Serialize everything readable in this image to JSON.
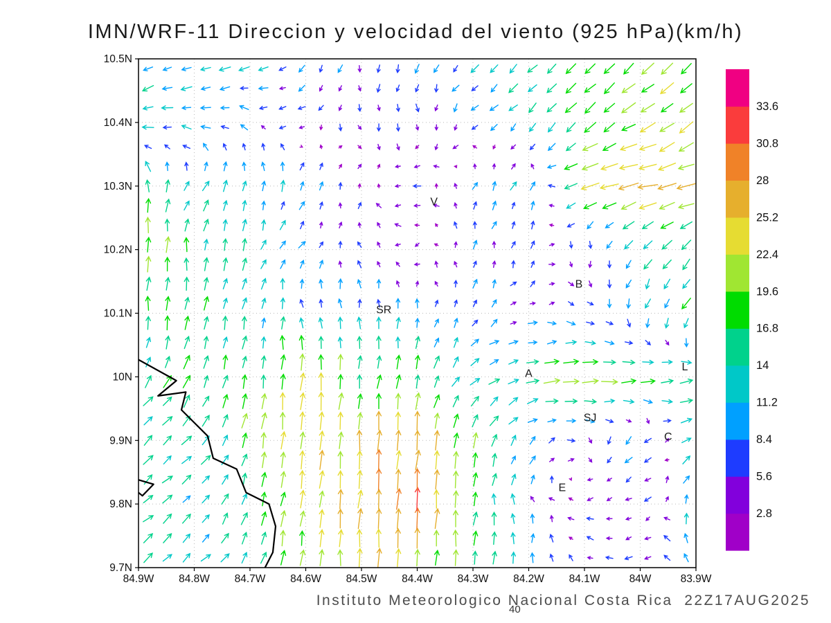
{
  "title": "IMN/WRF-11 Direccion y velocidad del viento (925 hPa)(km/h)",
  "caption": "Instituto Meteorologico Nacional Costa Rica  22Z17AUG2025",
  "frame_number": "40",
  "chart_data": {
    "type": "quiver",
    "title": "IMN/WRF-11 Direccion y velocidad del viento (925 hPa)(km/h)",
    "units": "km/h",
    "level": "925 hPa",
    "lon_range": [
      -84.9,
      -83.9
    ],
    "lat_range": [
      9.7,
      10.5
    ],
    "x_tick_labels": [
      "84.9W",
      "84.8W",
      "84.7W",
      "84.6W",
      "84.5W",
      "84.4W",
      "84.3W",
      "84.2W",
      "84.1W",
      "84W",
      "83.9W"
    ],
    "y_tick_labels": [
      "10.5N",
      "10.4N",
      "10.3N",
      "10.2N",
      "10.1N",
      "10N",
      "9.9N",
      "9.8N",
      "9.7N"
    ],
    "grid_on": true,
    "legend_position": "right",
    "colorbar": {
      "levels": [
        2.8,
        5.6,
        8.4,
        11.2,
        14,
        16.8,
        19.6,
        22.4,
        25.2,
        28,
        30.8,
        33.6
      ],
      "colors_bottom_to_top": [
        "#a000c8",
        "#8200dc",
        "#1e3cff",
        "#00a0ff",
        "#00c8c8",
        "#00d28c",
        "#00dc00",
        "#a0e632",
        "#e6dc32",
        "#e6af2d",
        "#f08228",
        "#fa3c3c",
        "#f00082"
      ]
    },
    "stations": [
      {
        "label": "V",
        "lon": -84.37,
        "lat": 10.27
      },
      {
        "label": "B",
        "lon": -84.11,
        "lat": 10.14
      },
      {
        "label": "SR",
        "lon": -84.46,
        "lat": 10.1
      },
      {
        "label": "A",
        "lon": -84.2,
        "lat": 10.0
      },
      {
        "label": "SJ",
        "lon": -84.09,
        "lat": 9.93
      },
      {
        "label": "C",
        "lon": -83.95,
        "lat": 9.9
      },
      {
        "label": "E",
        "lon": -84.14,
        "lat": 9.82
      },
      {
        "label": "L",
        "lon": -83.92,
        "lat": 10.01
      }
    ],
    "coastlines": [
      [
        [
          -84.9,
          10.027
        ],
        [
          -84.832,
          9.994
        ],
        [
          -84.865,
          9.97
        ],
        [
          -84.815,
          9.976
        ],
        [
          -84.823,
          9.948
        ],
        [
          -84.776,
          9.907
        ],
        [
          -84.766,
          9.872
        ],
        [
          -84.724,
          9.855
        ],
        [
          -84.707,
          9.818
        ],
        [
          -84.666,
          9.8
        ],
        [
          -84.654,
          9.765
        ],
        [
          -84.659,
          9.724
        ],
        [
          -84.673,
          9.7
        ]
      ],
      [
        [
          -84.9,
          9.838
        ],
        [
          -84.873,
          9.831
        ],
        [
          -84.893,
          9.813
        ],
        [
          -84.9,
          9.818
        ]
      ]
    ],
    "wind_grid": {
      "lons": [
        -84.9,
        -84.8,
        -84.7,
        -84.6,
        -84.5,
        -84.4,
        -84.3,
        -84.2,
        -84.1,
        -84.0,
        -83.9
      ],
      "lats": [
        10.5,
        10.4,
        10.3,
        10.2,
        10.1,
        10.0,
        9.9,
        9.8,
        9.7
      ],
      "u_kmh": [
        [
          -10,
          -11,
          -12,
          -5,
          -1,
          -3,
          -8,
          -9,
          -12,
          -13,
          -15
        ],
        [
          -12,
          -11,
          -6,
          -4,
          0,
          2,
          -6,
          -9,
          -13,
          -18,
          -16
        ],
        [
          -3,
          8,
          2,
          4,
          1,
          -5,
          3,
          6,
          -22,
          -26,
          -24
        ],
        [
          0,
          1,
          4,
          5,
          -3,
          -4,
          1,
          3,
          2,
          -8,
          -12
        ],
        [
          1,
          2,
          2,
          -2,
          0,
          1,
          3,
          6,
          4,
          -2,
          -10
        ],
        [
          10,
          6,
          3,
          2,
          1,
          4,
          9,
          17,
          24,
          18,
          16
        ],
        [
          11,
          10,
          4,
          2,
          1,
          2,
          5,
          8,
          5,
          -8,
          12
        ],
        [
          10,
          10,
          5,
          2,
          2,
          2,
          2,
          -2,
          -4,
          -5,
          3
        ],
        [
          11,
          10,
          8,
          2,
          1,
          2,
          1,
          1,
          -3,
          -6,
          -7
        ]
      ],
      "v_kmh": [
        [
          -6,
          -5,
          -4,
          -6,
          -7,
          -8,
          -8,
          -9,
          -12,
          -13,
          -14
        ],
        [
          -4,
          2,
          4,
          -4,
          -5,
          -6,
          -6,
          -9,
          -12,
          -10,
          -14
        ],
        [
          16,
          10,
          12,
          10,
          3,
          1,
          7,
          8,
          -8,
          -6,
          -5
        ],
        [
          22,
          16,
          12,
          6,
          6,
          -2,
          8,
          7,
          -7,
          -10,
          -13
        ],
        [
          15,
          16,
          13,
          10,
          11,
          10,
          7,
          2,
          -3,
          -10,
          -13
        ],
        [
          12,
          16,
          17,
          22,
          18,
          16,
          9,
          3,
          2,
          2,
          1
        ],
        [
          11,
          10,
          17,
          23,
          25,
          27,
          18,
          8,
          -4,
          -7,
          8
        ],
        [
          10,
          9,
          15,
          22,
          26,
          32,
          17,
          7,
          -1,
          -4,
          14
        ],
        [
          10,
          9,
          12,
          20,
          22,
          21,
          17,
          11,
          3,
          -2,
          8
        ]
      ]
    },
    "arrow_density": {
      "nx": 29,
      "ny": 26
    },
    "noise_amp_kmh": 2.5
  }
}
